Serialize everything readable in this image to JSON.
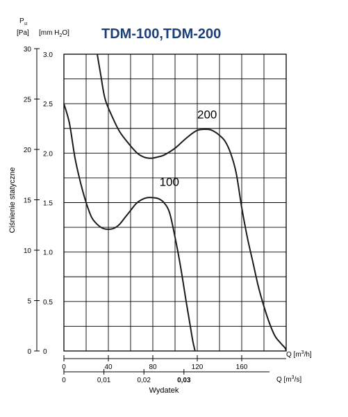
{
  "chart_data": {
    "type": "line",
    "title": "TDM-100,TDM-200",
    "ylabel": "Ciśnienie statyczne",
    "xlabel": "Wydatek",
    "left_axis": {
      "symbol": "P",
      "symbol_subscript": "st",
      "unit": "[Pa]",
      "ticks": [
        0,
        5,
        10,
        15,
        20,
        25,
        30
      ],
      "tick_labels": [
        "0",
        "5",
        "10",
        "15",
        "20",
        "25",
        "30"
      ]
    },
    "inner_axis": {
      "unit_prefix": "[mm H",
      "unit_sub": "2",
      "unit_suffix": "O]",
      "ticks": [
        0,
        0.5,
        1.0,
        1.5,
        2.0,
        2.5,
        3.0
      ],
      "tick_labels": [
        "0",
        "0.5",
        "1.0",
        "1.5",
        "2.0",
        "2.5",
        "3.0"
      ]
    },
    "x_axis_m3h": {
      "label_prefix": "Q [m",
      "label_sup": "3",
      "label_suffix": "/h]",
      "ticks": [
        0,
        40,
        80,
        120,
        160
      ],
      "tick_labels": [
        "0",
        "40",
        "80",
        "120",
        "160"
      ]
    },
    "x_axis_m3s": {
      "label_prefix": "Q [m",
      "label_sup": "3",
      "label_suffix": "/s]",
      "ticks": [
        0,
        0.01,
        0.02,
        0.03
      ],
      "tick_labels": [
        "0",
        "0,01",
        "0,02",
        "0,03"
      ]
    },
    "xlim": [
      0,
      200
    ],
    "ylim": [
      0,
      3.0
    ],
    "grid": true,
    "series": [
      {
        "name": "100",
        "x": [
          0,
          5,
          10,
          15,
          20,
          25,
          30,
          35,
          40,
          45,
          50,
          55,
          60,
          65,
          70,
          75,
          80,
          85,
          90,
          95,
          100,
          105,
          110,
          113,
          116,
          118
        ],
        "y": [
          2.5,
          2.3,
          1.95,
          1.7,
          1.5,
          1.35,
          1.28,
          1.24,
          1.23,
          1.24,
          1.28,
          1.35,
          1.42,
          1.49,
          1.53,
          1.55,
          1.55,
          1.54,
          1.5,
          1.4,
          1.15,
          0.85,
          0.5,
          0.3,
          0.1,
          0
        ]
      },
      {
        "name": "200",
        "x": [
          30,
          33,
          37,
          43,
          50,
          58,
          66,
          72,
          76,
          80,
          84,
          90,
          100,
          110,
          120,
          130,
          135,
          140,
          145,
          150,
          155,
          160,
          165,
          170,
          175,
          180,
          185,
          190,
          195,
          199,
          200
        ],
        "y": [
          3.0,
          2.8,
          2.55,
          2.38,
          2.22,
          2.1,
          2.0,
          1.96,
          1.95,
          1.95,
          1.96,
          1.98,
          2.05,
          2.15,
          2.23,
          2.24,
          2.22,
          2.18,
          2.12,
          2.0,
          1.8,
          1.45,
          1.15,
          0.9,
          0.65,
          0.45,
          0.28,
          0.15,
          0.08,
          0.03,
          0
        ]
      }
    ],
    "series_labels": [
      {
        "text": "100",
        "x": 86,
        "y": 1.67
      },
      {
        "text": "200",
        "x": 120,
        "y": 2.35
      }
    ],
    "colors": {
      "title": "#1c3f7a",
      "line": "#1a1a1a",
      "grid": "#000000"
    }
  }
}
